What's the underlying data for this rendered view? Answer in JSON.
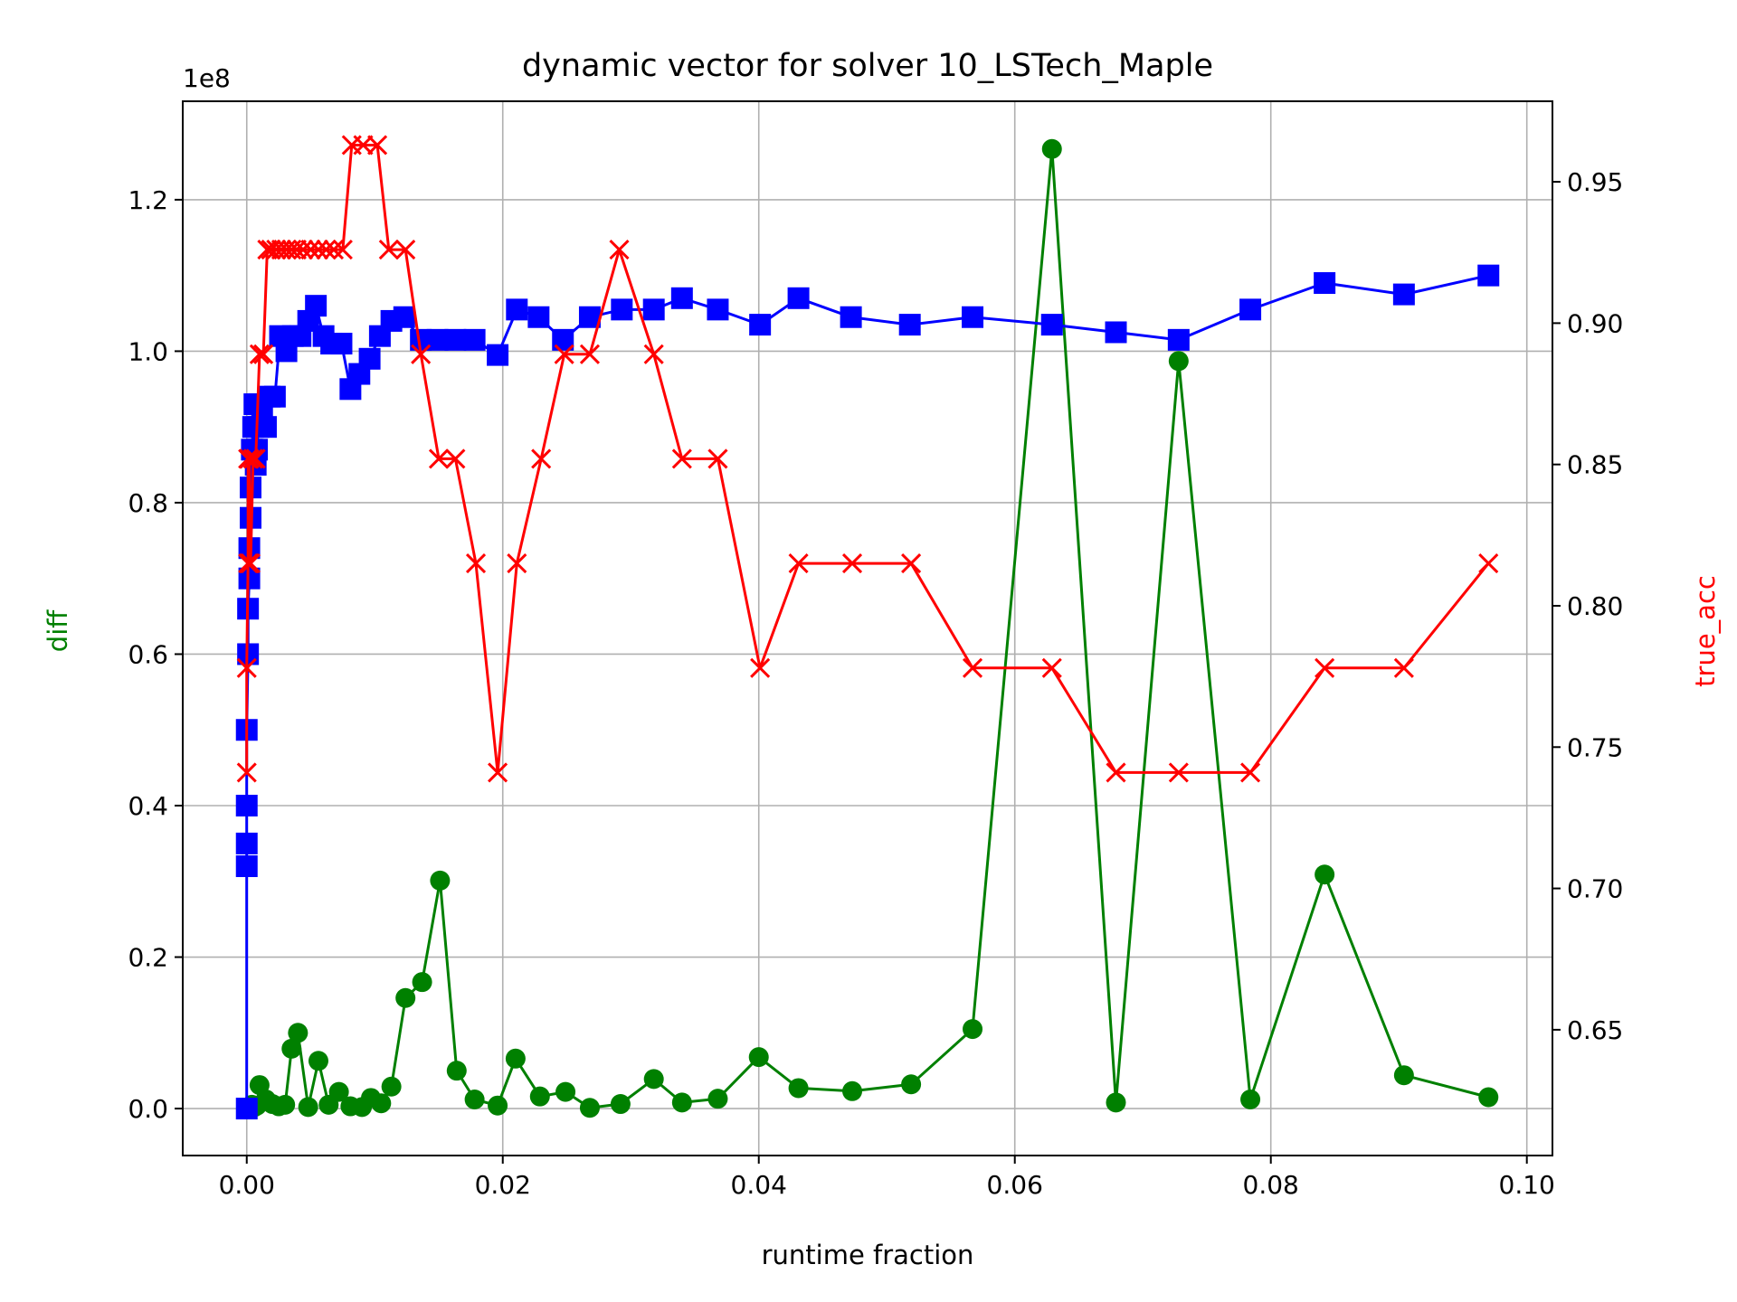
{
  "chart_data": {
    "type": "line",
    "title": "dynamic vector for solver 10_LSTech_Maple",
    "xlabel": "runtime fraction",
    "ylabel_left": "diff",
    "ylabel_right": "true_acc",
    "offset_text": "1e8",
    "xlim": [
      -0.005,
      0.102
    ],
    "ylim_left": [
      -0.062,
      1.33
    ],
    "ylim_right": [
      0.6055,
      0.9785
    ],
    "x_ticks": [
      0.0,
      0.02,
      0.04,
      0.06,
      0.08,
      0.1
    ],
    "x_tick_labels": [
      "0.00",
      "0.02",
      "0.04",
      "0.06",
      "0.08",
      "0.10"
    ],
    "y_left_ticks": [
      0.0,
      0.2,
      0.4,
      0.6,
      0.8,
      1.0,
      1.2
    ],
    "y_left_tick_labels": [
      "0.0",
      "0.2",
      "0.4",
      "0.6",
      "0.8",
      "1.0",
      "1.2"
    ],
    "y_right_ticks": [
      0.65,
      0.7,
      0.75,
      0.8,
      0.85,
      0.9,
      0.95
    ],
    "y_right_tick_labels": [
      "0.65",
      "0.70",
      "0.75",
      "0.80",
      "0.85",
      "0.90",
      "0.95"
    ],
    "grid": true,
    "colors": {
      "diff": "#008000",
      "blue": "#0000ff",
      "true_acc": "#ff0000",
      "ylabel_left": "#008000",
      "ylabel_right": "#ff0000"
    },
    "series": [
      {
        "axis": "left",
        "marker": "circle",
        "color": "#008000",
        "x": [
          0.0,
          0.0002,
          0.0004,
          0.0006,
          0.0008,
          0.001,
          0.0015,
          0.002,
          0.0025,
          0.003,
          0.0035,
          0.004,
          0.0048,
          0.0056,
          0.0064,
          0.0072,
          0.0081,
          0.009,
          0.0097,
          0.0105,
          0.0113,
          0.0124,
          0.0137,
          0.0151,
          0.0164,
          0.0178,
          0.0196,
          0.021,
          0.0229,
          0.0249,
          0.0268,
          0.0292,
          0.0318,
          0.034,
          0.0368,
          0.04,
          0.0431,
          0.0473,
          0.0519,
          0.0567,
          0.0629,
          0.0679,
          0.0728,
          0.0784,
          0.0842,
          0.0904,
          0.097
        ],
        "values": [
          0.0,
          0.001,
          0.005,
          0.002,
          0.004,
          0.031,
          0.012,
          0.006,
          0.003,
          0.005,
          0.079,
          0.1,
          0.002,
          0.063,
          0.005,
          0.022,
          0.003,
          0.002,
          0.014,
          0.007,
          0.029,
          0.146,
          0.167,
          0.301,
          0.05,
          0.012,
          0.004,
          0.066,
          0.016,
          0.022,
          0.001,
          0.006,
          0.039,
          0.008,
          0.013,
          0.068,
          0.027,
          0.023,
          0.032,
          0.105,
          1.267,
          0.008,
          0.987,
          0.012,
          0.309,
          0.044,
          0.015
        ]
      },
      {
        "axis": "left",
        "marker": "square",
        "color": "#0000ff",
        "x": [
          0.0,
          0.0,
          0.0,
          0.0,
          0.0,
          0.0001,
          0.0001,
          0.0002,
          0.0002,
          0.0003,
          0.0003,
          0.0004,
          0.0005,
          0.0006,
          0.0007,
          0.0008,
          0.0009,
          0.001,
          0.0012,
          0.0015,
          0.0018,
          0.0022,
          0.0026,
          0.0031,
          0.0036,
          0.0042,
          0.0048,
          0.0054,
          0.006,
          0.0066,
          0.0074,
          0.0081,
          0.0088,
          0.0096,
          0.0104,
          0.0113,
          0.0123,
          0.0136,
          0.0149,
          0.0163,
          0.0178,
          0.0196,
          0.0211,
          0.0228,
          0.0247,
          0.0268,
          0.0293,
          0.0318,
          0.034,
          0.0368,
          0.0401,
          0.0431,
          0.0472,
          0.0518,
          0.0567,
          0.0629,
          0.0679,
          0.0728,
          0.0784,
          0.0842,
          0.0904,
          0.097
        ],
        "values": [
          0.0,
          0.32,
          0.35,
          0.4,
          0.5,
          0.6,
          0.66,
          0.7,
          0.74,
          0.78,
          0.82,
          0.87,
          0.9,
          0.93,
          0.85,
          0.87,
          0.9,
          0.93,
          0.92,
          0.9,
          0.94,
          0.94,
          1.02,
          1.0,
          1.02,
          1.02,
          1.04,
          1.06,
          1.02,
          1.01,
          1.01,
          0.95,
          0.97,
          0.99,
          1.02,
          1.04,
          1.045,
          1.015,
          1.015,
          1.015,
          1.015,
          0.995,
          1.055,
          1.045,
          1.015,
          1.045,
          1.055,
          1.055,
          1.07,
          1.055,
          1.035,
          1.07,
          1.045,
          1.035,
          1.045,
          1.035,
          1.025,
          1.015,
          1.055,
          1.09,
          1.075,
          1.1
        ]
      },
      {
        "axis": "right",
        "marker": "x",
        "color": "#ff0000",
        "x": [
          0.0,
          0.0,
          0.0001,
          0.0001,
          0.0002,
          0.0002,
          0.0003,
          0.0005,
          0.0007,
          0.001,
          0.0013,
          0.0016,
          0.0019,
          0.0023,
          0.0027,
          0.0031,
          0.0035,
          0.0039,
          0.0044,
          0.005,
          0.0056,
          0.0062,
          0.0068,
          0.0075,
          0.0082,
          0.0091,
          0.0102,
          0.0111,
          0.0124,
          0.0136,
          0.015,
          0.0163,
          0.0179,
          0.0196,
          0.0211,
          0.023,
          0.0248,
          0.0268,
          0.0291,
          0.0318,
          0.034,
          0.0368,
          0.0401,
          0.0431,
          0.0473,
          0.0519,
          0.0567,
          0.0629,
          0.0679,
          0.0728,
          0.0784,
          0.0842,
          0.0904,
          0.097
        ],
        "values": [
          0.741,
          0.778,
          0.815,
          0.852,
          0.815,
          0.852,
          0.815,
          0.852,
          0.852,
          0.889,
          0.889,
          0.926,
          0.926,
          0.926,
          0.926,
          0.926,
          0.926,
          0.926,
          0.926,
          0.926,
          0.926,
          0.926,
          0.926,
          0.926,
          0.963,
          0.963,
          0.963,
          0.926,
          0.926,
          0.889,
          0.852,
          0.852,
          0.815,
          0.741,
          0.815,
          0.852,
          0.889,
          0.889,
          0.926,
          0.889,
          0.852,
          0.852,
          0.778,
          0.815,
          0.815,
          0.815,
          0.778,
          0.778,
          0.741,
          0.741,
          0.741,
          0.778,
          0.778,
          0.815
        ]
      }
    ]
  }
}
